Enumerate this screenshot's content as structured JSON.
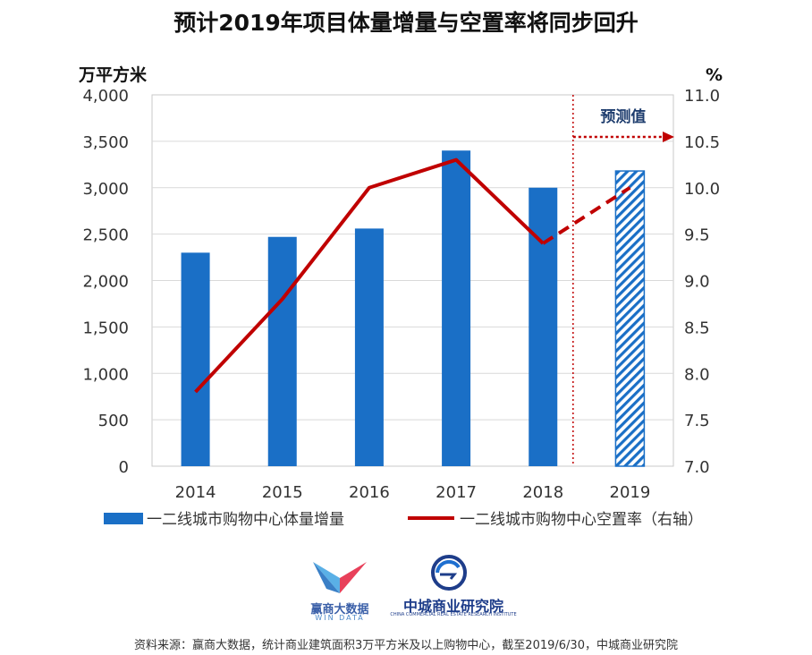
{
  "title": "预计2019年项目体量增量与空置率将同步回升",
  "chart_data": {
    "type": "bar",
    "categories": [
      "2014",
      "2015",
      "2016",
      "2017",
      "2018",
      "2019"
    ],
    "series": [
      {
        "name": "一二线城市购物中心体量增量",
        "type": "bar",
        "axis": "left",
        "values": [
          2300,
          2470,
          2560,
          3400,
          3000,
          3180
        ],
        "color": "#1a6fc6",
        "forecast_from_index": 5
      },
      {
        "name": "一二线城市购物中心空置率（右轴）",
        "type": "line",
        "axis": "right",
        "values": [
          7.8,
          8.8,
          10.0,
          10.3,
          9.4,
          10.0
        ],
        "color": "#c00000",
        "forecast_from_index": 4
      }
    ],
    "left_axis": {
      "unit": "万平方米",
      "range": [
        0,
        4000
      ],
      "step": 500,
      "ticks": [
        "0",
        "500",
        "1,000",
        "1,500",
        "2,000",
        "2,500",
        "3,000",
        "3,500",
        "4,000"
      ]
    },
    "right_axis": {
      "unit": "%",
      "range": [
        7.0,
        11.0
      ],
      "step": 0.5,
      "ticks": [
        "7.0",
        "7.5",
        "8.0",
        "8.5",
        "9.0",
        "9.5",
        "10.0",
        "10.5",
        "11.0"
      ]
    },
    "forecast_label": "预测值",
    "grid": true,
    "legend_position": "bottom"
  },
  "logos": {
    "win_name": "赢商大数据",
    "win_en": "WIN DATA",
    "ccre_name": "中城商业研究院",
    "ccre_en": "CHINA COMMERCIAL REAL ESTATE RESEARCH INSTITUTE"
  },
  "source": "资料来源：赢商大数据，统计商业建筑面积3万平方米及以上购物中心，截至2019/6/30，中城商业研究院"
}
